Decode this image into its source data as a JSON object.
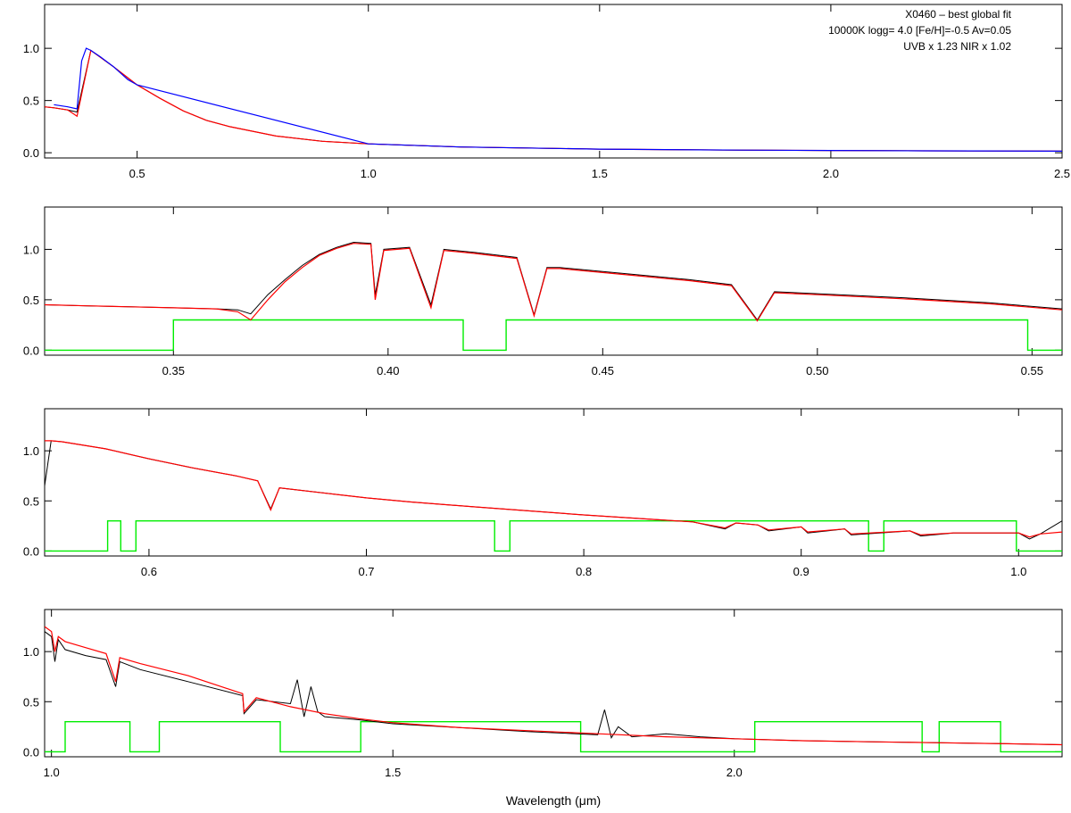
{
  "figure": {
    "annotation": [
      "X0460 – best global fit",
      "10000K logg= 4.0 [Fe/H]=-0.5 Av=0.05",
      "UVB x 1.23  NIR x 1.02"
    ],
    "xlabel": "Wavelength (μm)"
  },
  "colors": {
    "observed": "#000000",
    "model": "#ff0000",
    "model_blue": "#0000ff",
    "mask": "#00ee00"
  },
  "chart_data": [
    {
      "type": "line",
      "panel": "full-range",
      "xlim": [
        0.3,
        2.5
      ],
      "ylim": [
        -0.05,
        1.42
      ],
      "xticks": [
        0.5,
        1.0,
        1.5,
        2.0,
        2.5
      ],
      "xtick_labels": [
        "0.5",
        "1.0",
        "1.5",
        "2.0",
        "2.5"
      ],
      "yticks": [
        0.0,
        0.5,
        1.0
      ],
      "ytick_labels": [
        "0.0",
        "0.5",
        "1.0"
      ],
      "series": [
        {
          "role": "observed",
          "x": [
            0.3,
            0.32,
            0.35,
            0.37,
            0.4,
            0.45,
            0.5,
            0.55,
            0.6,
            0.65,
            0.7,
            0.8,
            0.9,
            1.0,
            1.2,
            1.5,
            1.8,
            2.0,
            2.2,
            2.5
          ],
          "y": [
            0.44,
            0.43,
            0.41,
            0.39,
            0.98,
            0.82,
            0.65,
            0.52,
            0.4,
            0.31,
            0.25,
            0.16,
            0.11,
            0.085,
            0.055,
            0.035,
            0.025,
            0.022,
            0.018,
            0.015
          ]
        },
        {
          "role": "model",
          "x": [
            0.3,
            0.32,
            0.35,
            0.37,
            0.4,
            0.45,
            0.5,
            0.55,
            0.6,
            0.65,
            0.7,
            0.8,
            0.9,
            1.0,
            1.2,
            1.5,
            1.8,
            2.0,
            2.2,
            2.5
          ],
          "y": [
            0.44,
            0.43,
            0.41,
            0.35,
            0.98,
            0.82,
            0.65,
            0.52,
            0.4,
            0.31,
            0.25,
            0.16,
            0.11,
            0.085,
            0.055,
            0.035,
            0.025,
            0.022,
            0.018,
            0.015
          ]
        },
        {
          "role": "model_blue",
          "x": [
            0.32,
            0.35,
            0.37,
            0.38,
            0.39,
            0.4,
            0.42,
            0.45,
            0.48,
            0.5,
            1.0,
            1.2,
            1.5,
            1.8,
            2.0,
            2.2,
            2.5
          ],
          "y": [
            0.46,
            0.44,
            0.42,
            0.88,
            1.0,
            0.98,
            0.92,
            0.82,
            0.7,
            0.65,
            0.085,
            0.055,
            0.035,
            0.025,
            0.022,
            0.018,
            0.015
          ]
        }
      ]
    },
    {
      "type": "line",
      "panel": "uvb",
      "xlim": [
        0.32,
        0.557
      ],
      "ylim": [
        -0.05,
        1.42
      ],
      "xticks": [
        0.35,
        0.4,
        0.45,
        0.5,
        0.55
      ],
      "xtick_labels": [
        "0.35",
        "0.40",
        "0.45",
        "0.50",
        "0.55"
      ],
      "yticks": [
        0.0,
        0.5,
        1.0
      ],
      "ytick_labels": [
        "0.0",
        "0.5",
        "1.0"
      ],
      "series": [
        {
          "role": "observed",
          "x": [
            0.32,
            0.33,
            0.34,
            0.35,
            0.36,
            0.365,
            0.368,
            0.372,
            0.376,
            0.38,
            0.384,
            0.388,
            0.392,
            0.396,
            0.397,
            0.399,
            0.405,
            0.41,
            0.413,
            0.42,
            0.43,
            0.434,
            0.437,
            0.44,
            0.45,
            0.46,
            0.47,
            0.48,
            0.486,
            0.49,
            0.5,
            0.52,
            0.54,
            0.557
          ],
          "y": [
            0.45,
            0.44,
            0.43,
            0.42,
            0.41,
            0.4,
            0.36,
            0.55,
            0.7,
            0.84,
            0.95,
            1.02,
            1.07,
            1.06,
            0.55,
            1.0,
            1.02,
            0.45,
            1.0,
            0.97,
            0.92,
            0.35,
            0.82,
            0.82,
            0.78,
            0.74,
            0.7,
            0.65,
            0.3,
            0.58,
            0.56,
            0.52,
            0.47,
            0.41
          ]
        },
        {
          "role": "model",
          "x": [
            0.32,
            0.33,
            0.34,
            0.35,
            0.36,
            0.365,
            0.368,
            0.372,
            0.376,
            0.38,
            0.384,
            0.388,
            0.392,
            0.396,
            0.397,
            0.399,
            0.405,
            0.41,
            0.413,
            0.42,
            0.43,
            0.434,
            0.437,
            0.44,
            0.45,
            0.46,
            0.47,
            0.48,
            0.486,
            0.49,
            0.5,
            0.52,
            0.54,
            0.557
          ],
          "y": [
            0.45,
            0.44,
            0.43,
            0.42,
            0.41,
            0.38,
            0.3,
            0.5,
            0.68,
            0.82,
            0.94,
            1.01,
            1.06,
            1.05,
            0.5,
            0.99,
            1.01,
            0.42,
            0.99,
            0.96,
            0.91,
            0.34,
            0.81,
            0.81,
            0.77,
            0.73,
            0.69,
            0.64,
            0.29,
            0.57,
            0.55,
            0.51,
            0.46,
            0.4
          ]
        }
      ],
      "mask": {
        "x": [
          0.32,
          0.35,
          0.35,
          0.4175,
          0.4175,
          0.4275,
          0.4275,
          0.549,
          0.549,
          0.557
        ],
        "y": [
          0.0,
          0.0,
          0.3,
          0.3,
          0.0,
          0.0,
          0.3,
          0.3,
          0.0,
          0.0
        ]
      }
    },
    {
      "type": "line",
      "panel": "vis",
      "xlim": [
        0.552,
        1.02
      ],
      "ylim": [
        -0.05,
        1.42
      ],
      "xticks": [
        0.6,
        0.7,
        0.8,
        0.9,
        1.0
      ],
      "xtick_labels": [
        "0.6",
        "0.7",
        "0.8",
        "0.9",
        "1.0"
      ],
      "yticks": [
        0.0,
        0.5,
        1.0
      ],
      "ytick_labels": [
        "0.0",
        "0.5",
        "1.0"
      ],
      "series": [
        {
          "role": "observed",
          "x": [
            0.552,
            0.555,
            0.56,
            0.58,
            0.6,
            0.62,
            0.64,
            0.65,
            0.656,
            0.66,
            0.68,
            0.7,
            0.72,
            0.75,
            0.8,
            0.85,
            0.865,
            0.87,
            0.88,
            0.885,
            0.9,
            0.903,
            0.92,
            0.923,
            0.95,
            0.955,
            0.97,
            1.0,
            1.005,
            1.01,
            1.02
          ],
          "y": [
            0.65,
            1.1,
            1.09,
            1.02,
            0.92,
            0.83,
            0.75,
            0.7,
            0.42,
            0.63,
            0.58,
            0.53,
            0.49,
            0.44,
            0.36,
            0.29,
            0.22,
            0.28,
            0.26,
            0.2,
            0.24,
            0.18,
            0.22,
            0.16,
            0.2,
            0.15,
            0.18,
            0.18,
            0.12,
            0.17,
            0.3
          ]
        },
        {
          "role": "model",
          "x": [
            0.552,
            0.555,
            0.56,
            0.58,
            0.6,
            0.62,
            0.64,
            0.65,
            0.656,
            0.66,
            0.68,
            0.7,
            0.72,
            0.75,
            0.8,
            0.85,
            0.865,
            0.87,
            0.88,
            0.885,
            0.9,
            0.903,
            0.92,
            0.923,
            0.95,
            0.955,
            0.97,
            1.0,
            1.005,
            1.01,
            1.02
          ],
          "y": [
            1.1,
            1.1,
            1.09,
            1.02,
            0.92,
            0.83,
            0.75,
            0.7,
            0.41,
            0.63,
            0.58,
            0.53,
            0.49,
            0.44,
            0.36,
            0.29,
            0.23,
            0.28,
            0.26,
            0.21,
            0.24,
            0.19,
            0.22,
            0.17,
            0.2,
            0.16,
            0.18,
            0.18,
            0.14,
            0.17,
            0.19
          ]
        }
      ],
      "mask": {
        "x": [
          0.552,
          0.581,
          0.581,
          0.587,
          0.587,
          0.594,
          0.594,
          0.759,
          0.759,
          0.766,
          0.766,
          0.931,
          0.931,
          0.938,
          0.938,
          0.999,
          0.999,
          1.02
        ],
        "y": [
          0.0,
          0.0,
          0.3,
          0.3,
          0.0,
          0.0,
          0.3,
          0.3,
          0.0,
          0.0,
          0.3,
          0.3,
          0.0,
          0.0,
          0.3,
          0.3,
          0.0,
          0.0
        ]
      }
    },
    {
      "type": "line",
      "panel": "nir",
      "xlim": [
        0.99,
        2.48
      ],
      "ylim": [
        -0.05,
        1.42
      ],
      "xticks": [
        1.0,
        1.5,
        2.0
      ],
      "xtick_labels": [
        "1.0",
        "1.5",
        "2.0"
      ],
      "yticks": [
        0.0,
        0.5,
        1.0
      ],
      "ytick_labels": [
        "0.0",
        "0.5",
        "1.0"
      ],
      "series": [
        {
          "role": "observed",
          "x": [
            0.99,
            1.0,
            1.005,
            1.01,
            1.02,
            1.05,
            1.08,
            1.094,
            1.1,
            1.13,
            1.2,
            1.28,
            1.282,
            1.3,
            1.35,
            1.36,
            1.37,
            1.38,
            1.39,
            1.4,
            1.45,
            1.5,
            1.6,
            1.7,
            1.8,
            1.81,
            1.82,
            1.83,
            1.85,
            1.9,
            1.95,
            2.0,
            2.1,
            2.2,
            2.3,
            2.4,
            2.48
          ],
          "y": [
            1.2,
            1.15,
            0.9,
            1.12,
            1.02,
            0.96,
            0.92,
            0.65,
            0.9,
            0.82,
            0.7,
            0.56,
            0.38,
            0.52,
            0.48,
            0.72,
            0.35,
            0.65,
            0.4,
            0.35,
            0.32,
            0.28,
            0.24,
            0.2,
            0.17,
            0.42,
            0.14,
            0.25,
            0.15,
            0.18,
            0.15,
            0.13,
            0.11,
            0.1,
            0.09,
            0.08,
            0.07
          ]
        },
        {
          "role": "model",
          "x": [
            0.99,
            1.0,
            1.005,
            1.01,
            1.02,
            1.05,
            1.08,
            1.094,
            1.1,
            1.13,
            1.2,
            1.28,
            1.282,
            1.3,
            1.35,
            1.4,
            1.45,
            1.5,
            1.6,
            1.7,
            1.8,
            1.9,
            2.0,
            2.1,
            2.2,
            2.3,
            2.4,
            2.48
          ],
          "y": [
            1.25,
            1.2,
            1.0,
            1.15,
            1.1,
            1.04,
            0.98,
            0.7,
            0.94,
            0.88,
            0.76,
            0.58,
            0.4,
            0.54,
            0.45,
            0.38,
            0.33,
            0.29,
            0.24,
            0.21,
            0.18,
            0.15,
            0.13,
            0.11,
            0.1,
            0.09,
            0.08,
            0.07
          ]
        }
      ],
      "mask": {
        "x": [
          0.99,
          1.02,
          1.02,
          1.115,
          1.115,
          1.158,
          1.158,
          1.335,
          1.335,
          1.453,
          1.453,
          1.775,
          1.775,
          2.03,
          2.03,
          2.275,
          2.275,
          2.3,
          2.3,
          2.39,
          2.39,
          2.48
        ],
        "y": [
          0.0,
          0.0,
          0.3,
          0.3,
          0.0,
          0.0,
          0.3,
          0.3,
          0.0,
          0.0,
          0.3,
          0.3,
          0.0,
          0.0,
          0.3,
          0.3,
          0.0,
          0.0,
          0.3,
          0.3,
          0.0,
          0.0
        ]
      }
    }
  ]
}
